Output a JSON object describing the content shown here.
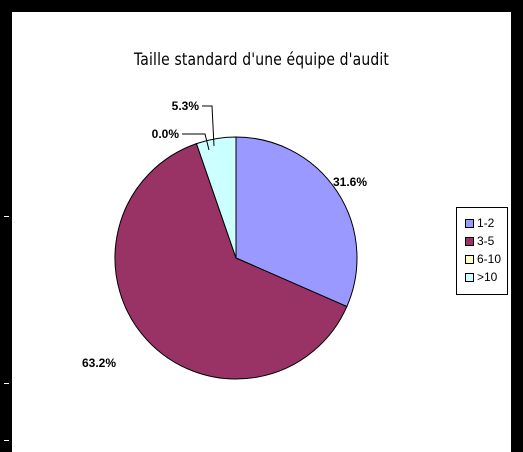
{
  "chart_data": {
    "type": "pie",
    "title": "Taille standard d'une équipe d'audit",
    "categories": [
      "1-2",
      "3-5",
      "6-10",
      ">10"
    ],
    "values": [
      31.6,
      63.2,
      0.0,
      5.3
    ],
    "value_labels": [
      "31.6%",
      "63.2%",
      "0.0%",
      "5.3%"
    ],
    "colors": [
      "#9999ff",
      "#993366",
      "#ffffcc",
      "#ccffff"
    ],
    "legend_placement": "right",
    "start_angle": "12 o'clock, clockwise"
  }
}
